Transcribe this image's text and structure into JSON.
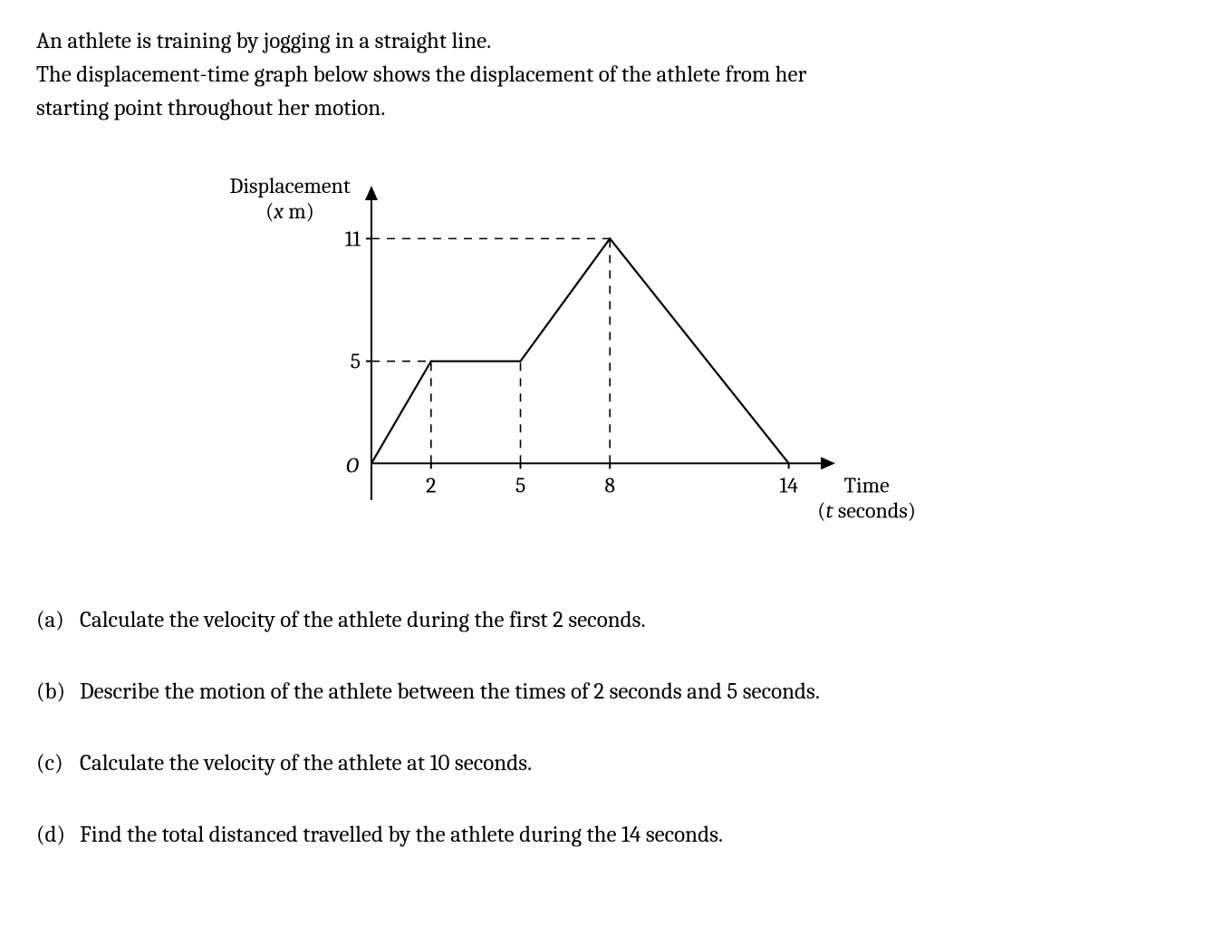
{
  "intro": {
    "line1": "An athlete is training by jogging in a straight line.",
    "line2": "The displacement-time graph below shows the displacement of the athlete from her",
    "line3": "starting point throughout her motion."
  },
  "chart": {
    "type": "line",
    "y_axis_label_top": "Displacement",
    "y_axis_label_bottom_prefix": "(",
    "y_axis_label_bottom_var": "x",
    "y_axis_label_bottom_unit": " m)",
    "x_axis_label_main": "Time",
    "x_axis_label_sub_prefix": "(",
    "x_axis_label_sub_var": "t",
    "x_axis_label_sub_unit": " seconds)",
    "origin_label": "O",
    "y_ticks": [
      5,
      11
    ],
    "x_ticks": [
      2,
      5,
      8,
      14
    ],
    "points": [
      {
        "t": 0,
        "x": 0
      },
      {
        "t": 2,
        "x": 5
      },
      {
        "t": 5,
        "x": 5
      },
      {
        "t": 8,
        "x": 11
      },
      {
        "t": 14,
        "x": 0
      }
    ],
    "xlim": [
      0,
      15.5
    ],
    "ylim": [
      -1.8,
      13.5
    ],
    "line_color": "#000000",
    "dash_color": "#000000",
    "background_color": "#ffffff",
    "line_width_main": 2.2,
    "line_width_dash": 1.6,
    "dash_pattern": "9 8",
    "axis_fontsize": 24,
    "label_fontsize": 24
  },
  "questions": {
    "a": {
      "label": "(a)",
      "text": "Calculate the velocity of the athlete during the first 2 seconds."
    },
    "b": {
      "label": "(b)",
      "text": "Describe the motion of the athlete between the times of 2 seconds and 5 seconds."
    },
    "c": {
      "label": "(c)",
      "text": "Calculate the velocity of the athlete at 10 seconds."
    },
    "d": {
      "label": "(d)",
      "text": "Find the total distanced travelled by the athlete during the 14 seconds."
    }
  }
}
